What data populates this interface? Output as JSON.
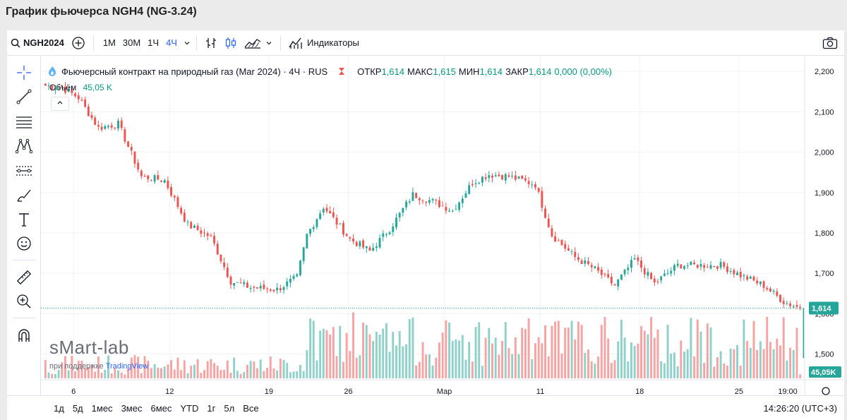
{
  "page": {
    "title": "График фьючерса NGH4 (NG-3.24)"
  },
  "toolbar": {
    "symbol": "NGH2024",
    "intervals": [
      "1М",
      "30М",
      "1Ч",
      "4Ч"
    ],
    "active_interval": "4Ч",
    "indicators_label": "Индикаторы"
  },
  "legend": {
    "title": "Фьючерсный контракт на природный газ (Mar 2024) · 4Ч · RUS",
    "open_label": "ОТКР",
    "open": "1,614",
    "high_label": "МАКС",
    "high": "1,615",
    "low_label": "МИН",
    "low": "1,614",
    "close_label": "ЗАКР",
    "close": "1,614",
    "change": "0,000 (0,00%)",
    "volume_label": "Объём",
    "volume_value": "45,05 K"
  },
  "watermark": {
    "brand": "sMart-lab",
    "support_text": "при поддержке",
    "support_brand": "TradingView"
  },
  "bottom": {
    "ranges": [
      "1д",
      "5д",
      "1мес",
      "3мес",
      "6мес",
      "YTD",
      "1г",
      "5л",
      "Все"
    ],
    "clock": "14:26:20 (UTC+3)"
  },
  "colors": {
    "up": "#26a69a",
    "down": "#ef5350",
    "up_vol": "#8fd1c8",
    "down_vol": "#f5a3a3",
    "accent": "#2962ff"
  },
  "chart_data": {
    "type": "candlestick",
    "title": "Фьючерсный контракт на природный газ (Mar 2024) · 4Ч · RUS",
    "ylim": [
      1.44,
      2.23
    ],
    "y_ticks": [
      "2,200",
      "2,100",
      "2,000",
      "1,900",
      "1,800",
      "1,700",
      "1,600",
      "1,500"
    ],
    "x_ticks": [
      "6",
      "12",
      "19",
      "26",
      "Мар",
      "11",
      "18",
      "25",
      "19:00"
    ],
    "last_price": "1,614",
    "last_volume": "45,05K",
    "anchors": [
      [
        0,
        2.165
      ],
      [
        5,
        2.16
      ],
      [
        10,
        2.135
      ],
      [
        16,
        2.06
      ],
      [
        22,
        2.07
      ],
      [
        29,
        1.94
      ],
      [
        36,
        1.93
      ],
      [
        43,
        1.82
      ],
      [
        50,
        1.79
      ],
      [
        56,
        1.68
      ],
      [
        62,
        1.665
      ],
      [
        70,
        1.66
      ],
      [
        76,
        1.69
      ],
      [
        79,
        1.795
      ],
      [
        84,
        1.865
      ],
      [
        92,
        1.785
      ],
      [
        98,
        1.755
      ],
      [
        104,
        1.81
      ],
      [
        111,
        1.895
      ],
      [
        118,
        1.875
      ],
      [
        123,
        1.855
      ],
      [
        129,
        1.925
      ],
      [
        134,
        1.945
      ],
      [
        140,
        1.94
      ],
      [
        148,
        1.92
      ],
      [
        153,
        1.795
      ],
      [
        160,
        1.74
      ],
      [
        166,
        1.71
      ],
      [
        172,
        1.67
      ],
      [
        178,
        1.735
      ],
      [
        184,
        1.675
      ],
      [
        191,
        1.72
      ],
      [
        198,
        1.72
      ],
      [
        204,
        1.72
      ],
      [
        210,
        1.695
      ],
      [
        217,
        1.67
      ],
      [
        223,
        1.63
      ],
      [
        228,
        1.614
      ]
    ]
  }
}
